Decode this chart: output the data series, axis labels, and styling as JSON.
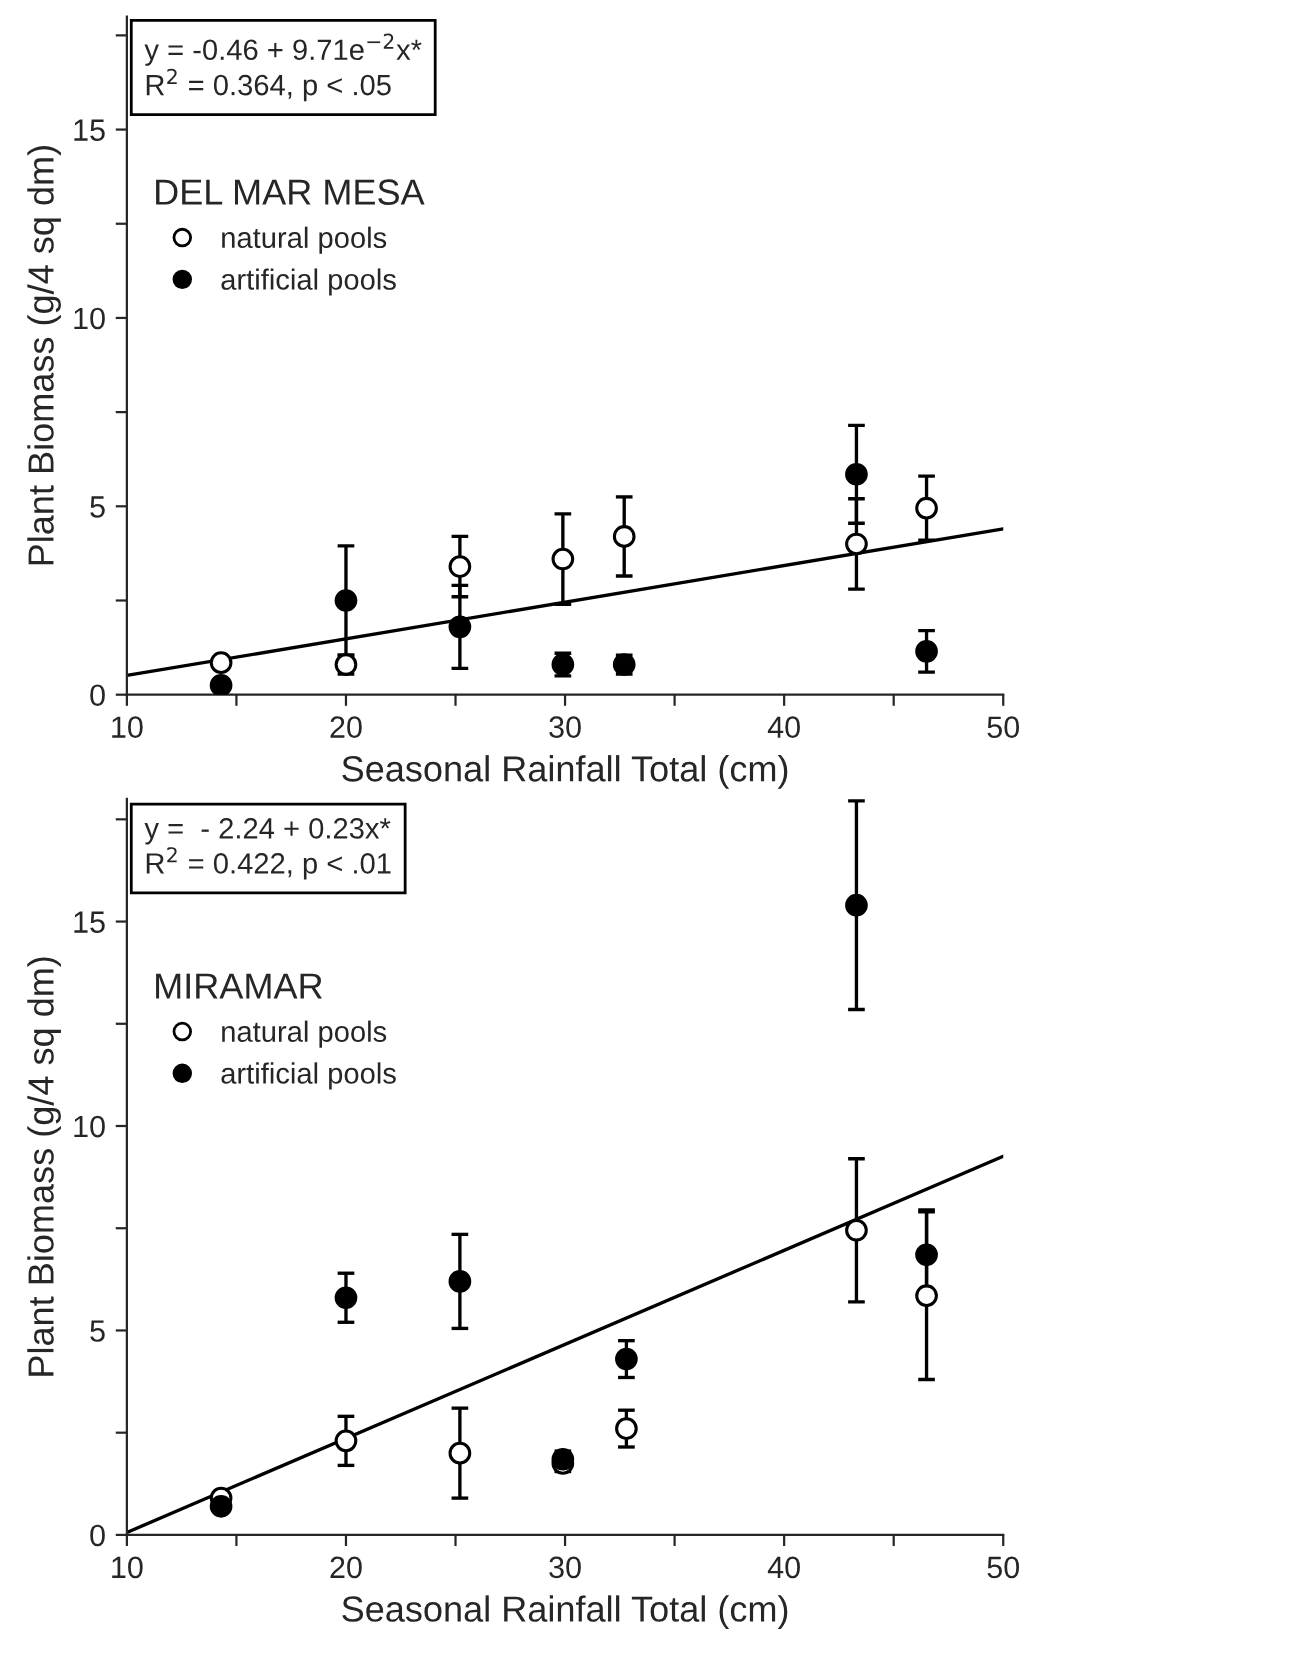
{
  "chart_data": [
    {
      "type": "scatter",
      "xlabel": "Seasonal Rainfall Total (cm)",
      "ylabel": "Plant Biomass (g/4 sq dm)",
      "legend_title": "DEL MAR MESA",
      "legend": "top left",
      "annotations": [
        "y = -0.46 + 9.71e$^{−2}$x*\nR$^{2}$ = 0.364, p < .05"
      ],
      "xlim": [
        10,
        50
      ],
      "ylim": [
        0,
        18
      ],
      "xticks": [
        10,
        {
          "value": 15,
          "label": null
        },
        20,
        {
          "value": 25,
          "label": null
        },
        30,
        {
          "value": 35,
          "label": null
        },
        40,
        {
          "value": 45,
          "label": null
        },
        50
      ],
      "yticks": [
        0,
        {
          "value": 2.5,
          "label": null
        },
        5,
        {
          "value": 7.5,
          "label": null
        },
        10,
        {
          "value": 12.5,
          "label": null
        },
        15,
        {
          "value": 17.5,
          "label": null
        }
      ],
      "series": [
        {
          "name": "natural pools",
          "marker": "circle",
          "color": "#ffffff",
          "x": [
            14.3,
            20,
            25.2,
            29.9,
            32.7,
            43.3,
            46.5
          ],
          "values": [
            0.85,
            0.8,
            3.4,
            3.6,
            4.2,
            4.0,
            4.95
          ],
          "errors": [
            0.15,
            0.25,
            0.8,
            1.2,
            1.05,
            1.2,
            0.85
          ]
        },
        {
          "name": "artificial pools",
          "marker": "circle",
          "color": "#000000",
          "x": [
            14.3,
            20,
            25.2,
            29.9,
            32.7,
            43.3,
            46.5
          ],
          "values": [
            0.25,
            2.5,
            1.8,
            0.8,
            0.8,
            5.85,
            1.15
          ],
          "errors": [
            null,
            1.45,
            1.1,
            0.3,
            0.25,
            1.3,
            0.55
          ]
        },
        {
          "type": "line",
          "color": "#000000",
          "x": [
            10,
            50
          ],
          "values": [
            0.51,
            4.4
          ]
        }
      ]
    },
    {
      "type": "scatter",
      "xlabel": "Seasonal Rainfall Total (cm)",
      "ylabel": "Plant Biomass (g/4 sq dm)",
      "legend_title": "MIRAMAR",
      "legend": "top left",
      "annotations": [
        "y =  - 2.24 + 0.23x*\nR$^{2}$ = 0.422, p < .01"
      ],
      "xlim": [
        10,
        50
      ],
      "ylim": [
        0,
        18
      ],
      "xticks": [
        10,
        {
          "value": 15,
          "label": null
        },
        20,
        {
          "value": 25,
          "label": null
        },
        30,
        {
          "value": 35,
          "label": null
        },
        40,
        {
          "value": 45,
          "label": null
        },
        50
      ],
      "yticks": [
        0,
        {
          "value": 2.5,
          "label": null
        },
        5,
        {
          "value": 7.5,
          "label": null
        },
        10,
        {
          "value": 12.5,
          "label": null
        },
        15,
        {
          "value": 17.5,
          "label": null
        }
      ],
      "series": [
        {
          "name": "natural pools",
          "marker": "circle",
          "color": "#ffffff",
          "x": [
            14.3,
            20,
            25.2,
            29.9,
            32.8,
            43.3,
            46.5
          ],
          "values": [
            0.9,
            2.3,
            2.0,
            1.75,
            2.6,
            7.45,
            5.85
          ],
          "errors": [
            0.1,
            0.6,
            1.1,
            0.2,
            0.45,
            1.75,
            2.05
          ]
        },
        {
          "name": "artificial pools",
          "marker": "circle",
          "color": "#000000",
          "x": [
            14.3,
            20,
            25.2,
            29.9,
            32.8,
            43.3,
            46.5
          ],
          "values": [
            0.7,
            5.8,
            6.2,
            1.85,
            4.3,
            15.4,
            6.85
          ],
          "errors": [
            null,
            0.6,
            1.15,
            0.2,
            0.45,
            2.55,
            1.1
          ]
        },
        {
          "type": "line",
          "color": "#000000",
          "x": [
            10,
            50
          ],
          "values": [
            0.06,
            9.26
          ]
        }
      ]
    }
  ]
}
